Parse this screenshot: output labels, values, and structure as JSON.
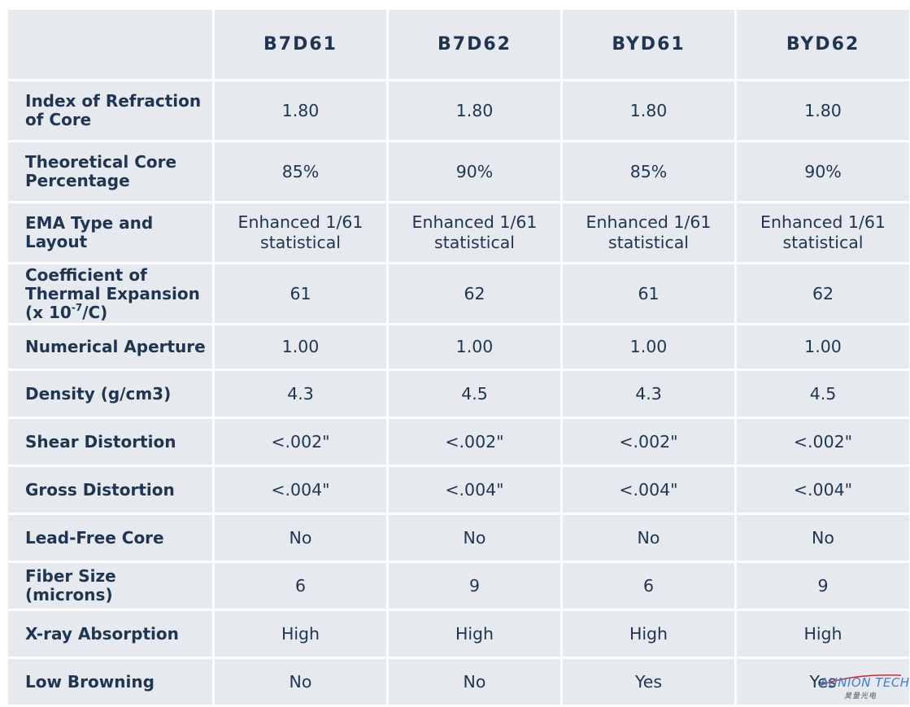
{
  "columns": [
    "",
    "B7D61",
    "B7D62",
    "BYD61",
    "BYD62"
  ],
  "rows": [
    {
      "label": "Index of Refraction of Core",
      "values": [
        "1.80",
        "1.80",
        "1.80",
        "1.80"
      ]
    },
    {
      "label": "Theoretical Core Percentage",
      "values": [
        "85%",
        "90%",
        "85%",
        "90%"
      ]
    },
    {
      "label": "EMA Type and Layout",
      "values": [
        "Enhanced 1/61 statistical",
        "Enhanced 1/61 statistical",
        "Enhanced 1/61 statistical",
        "Enhanced 1/61 statistical"
      ]
    },
    {
      "label_main": "Coefficient of Thermal Expansion (x 10",
      "label_sup": "-7",
      "label_tail": "/C)",
      "values": [
        "61",
        "62",
        "61",
        "62"
      ]
    },
    {
      "label": "Numerical Aperture",
      "values": [
        "1.00",
        "1.00",
        "1.00",
        "1.00"
      ]
    },
    {
      "label": "Density (g/cm3)",
      "values": [
        "4.3",
        "4.5",
        "4.3",
        "4.5"
      ]
    },
    {
      "label": "Shear Distortion",
      "values": [
        "<.002\"",
        "<.002\"",
        "<.002\"",
        "<.002\""
      ]
    },
    {
      "label": "Gross Distortion",
      "values": [
        "<.004\"",
        "<.004\"",
        "<.004\"",
        "<.004\""
      ]
    },
    {
      "label": "Lead-Free Core",
      "values": [
        "No",
        "No",
        "No",
        "No"
      ]
    },
    {
      "label": "Fiber Size (microns)",
      "values": [
        "6",
        "9",
        "6",
        "9"
      ]
    },
    {
      "label": "X-ray Absorption",
      "values": [
        "High",
        "High",
        "High",
        "High"
      ]
    },
    {
      "label": "Low Browning",
      "values": [
        "No",
        "No",
        "Yes",
        "Yes"
      ]
    }
  ],
  "logo": {
    "text": "AUNION TECH",
    "subtext": "昊量光电"
  },
  "colors": {
    "cell_bg": "#e6e9ee",
    "text": "#1f3552",
    "logo_blue": "#3d7fd0"
  }
}
